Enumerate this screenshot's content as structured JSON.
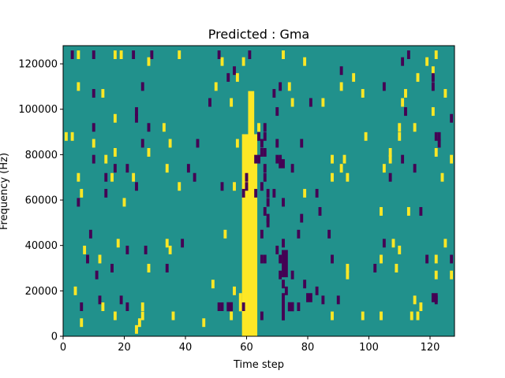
{
  "chart_data": {
    "type": "heatmap",
    "title": "Predicted : Gma",
    "xlabel": "Time step",
    "ylabel": "Frequency (Hz)",
    "xlim": [
      0,
      128
    ],
    "ylim": [
      0,
      128000
    ],
    "x_ticks": [
      0,
      20,
      40,
      60,
      80,
      100,
      120
    ],
    "y_ticks": [
      0,
      20000,
      40000,
      60000,
      80000,
      100000,
      120000
    ],
    "grid": false,
    "colors": {
      "background": "#21918c",
      "high": "#fde725",
      "low": "#440154"
    },
    "band": {
      "x_range": [
        58.5,
        63.5
      ],
      "y_range": [
        0,
        89000
      ],
      "core_x_range": [
        60.5,
        62.5
      ],
      "core_y_range": [
        0,
        108000
      ],
      "value": "high"
    },
    "cells": [
      {
        "x": 3,
        "y": 124000,
        "v": "low"
      },
      {
        "x": 5,
        "y": 124000,
        "v": "high"
      },
      {
        "x": 10,
        "y": 124000,
        "v": "low"
      },
      {
        "x": 17,
        "y": 124000,
        "v": "high"
      },
      {
        "x": 19,
        "y": 124000,
        "v": "high"
      },
      {
        "x": 23,
        "y": 124000,
        "v": "low"
      },
      {
        "x": 29,
        "y": 124000,
        "v": "low"
      },
      {
        "x": 38,
        "y": 124000,
        "v": "high"
      },
      {
        "x": 51,
        "y": 124000,
        "v": "low"
      },
      {
        "x": 61,
        "y": 124000,
        "v": "low"
      },
      {
        "x": 72,
        "y": 124000,
        "v": "high"
      },
      {
        "x": 113,
        "y": 124000,
        "v": "low"
      },
      {
        "x": 122,
        "y": 124000,
        "v": "high"
      },
      {
        "x": 28,
        "y": 121000,
        "v": "high"
      },
      {
        "x": 52,
        "y": 121000,
        "v": "high"
      },
      {
        "x": 59,
        "y": 121000,
        "v": "high"
      },
      {
        "x": 79,
        "y": 121000,
        "v": "high"
      },
      {
        "x": 111,
        "y": 121000,
        "v": "low"
      },
      {
        "x": 119,
        "y": 121000,
        "v": "high"
      },
      {
        "x": 56,
        "y": 117000,
        "v": "low"
      },
      {
        "x": 91,
        "y": 117000,
        "v": "low"
      },
      {
        "x": 121,
        "y": 117000,
        "v": "high"
      },
      {
        "x": 54,
        "y": 114000,
        "v": "low"
      },
      {
        "x": 57,
        "y": 114000,
        "v": "high"
      },
      {
        "x": 95,
        "y": 114000,
        "v": "high"
      },
      {
        "x": 116,
        "y": 114000,
        "v": "high"
      },
      {
        "x": 121,
        "y": 114000,
        "v": "low"
      },
      {
        "x": 5,
        "y": 110000,
        "v": "high"
      },
      {
        "x": 26,
        "y": 110000,
        "v": "low"
      },
      {
        "x": 50,
        "y": 110000,
        "v": "high"
      },
      {
        "x": 71,
        "y": 110000,
        "v": "low"
      },
      {
        "x": 74,
        "y": 110000,
        "v": "high"
      },
      {
        "x": 91,
        "y": 110000,
        "v": "high"
      },
      {
        "x": 105,
        "y": 110000,
        "v": "low"
      },
      {
        "x": 121,
        "y": 110000,
        "v": "low"
      },
      {
        "x": 10,
        "y": 107000,
        "v": "low"
      },
      {
        "x": 13,
        "y": 107000,
        "v": "high"
      },
      {
        "x": 69,
        "y": 107000,
        "v": "low"
      },
      {
        "x": 98,
        "y": 107000,
        "v": "high"
      },
      {
        "x": 112,
        "y": 107000,
        "v": "high"
      },
      {
        "x": 125,
        "y": 107000,
        "v": "high"
      },
      {
        "x": 48,
        "y": 103000,
        "v": "low"
      },
      {
        "x": 55,
        "y": 103000,
        "v": "high"
      },
      {
        "x": 75,
        "y": 103000,
        "v": "high"
      },
      {
        "x": 81,
        "y": 103000,
        "v": "low"
      },
      {
        "x": 85,
        "y": 103000,
        "v": "high"
      },
      {
        "x": 111,
        "y": 103000,
        "v": "high"
      },
      {
        "x": 24,
        "y": 99000,
        "v": "low"
      },
      {
        "x": 70,
        "y": 99000,
        "v": "low"
      },
      {
        "x": 112,
        "y": 99000,
        "v": "low"
      },
      {
        "x": 121,
        "y": 99000,
        "v": "high"
      },
      {
        "x": 17,
        "y": 96000,
        "v": "high"
      },
      {
        "x": 24,
        "y": 96000,
        "v": "low"
      },
      {
        "x": 127,
        "y": 96000,
        "v": "low"
      },
      {
        "x": 10,
        "y": 92000,
        "v": "low"
      },
      {
        "x": 28,
        "y": 92000,
        "v": "low"
      },
      {
        "x": 33,
        "y": 92000,
        "v": "high"
      },
      {
        "x": 64,
        "y": 92000,
        "v": "high"
      },
      {
        "x": 66,
        "y": 92000,
        "v": "low"
      },
      {
        "x": 110,
        "y": 92000,
        "v": "high"
      },
      {
        "x": 115,
        "y": 92000,
        "v": "high"
      },
      {
        "x": 1,
        "y": 88000,
        "v": "high"
      },
      {
        "x": 3,
        "y": 88000,
        "v": "high"
      },
      {
        "x": 64,
        "y": 88000,
        "v": "low"
      },
      {
        "x": 66,
        "y": 88000,
        "v": "low"
      },
      {
        "x": 99,
        "y": 88000,
        "v": "high"
      },
      {
        "x": 110,
        "y": 88000,
        "v": "high"
      },
      {
        "x": 122,
        "y": 88000,
        "v": "low"
      },
      {
        "x": 123,
        "y": 88000,
        "v": "low"
      },
      {
        "x": 10,
        "y": 85000,
        "v": "high"
      },
      {
        "x": 26,
        "y": 85000,
        "v": "low"
      },
      {
        "x": 35,
        "y": 85000,
        "v": "high"
      },
      {
        "x": 44,
        "y": 85000,
        "v": "low"
      },
      {
        "x": 57,
        "y": 85000,
        "v": "high"
      },
      {
        "x": 65,
        "y": 85000,
        "v": "low"
      },
      {
        "x": 70,
        "y": 85000,
        "v": "low"
      },
      {
        "x": 78,
        "y": 85000,
        "v": "low"
      },
      {
        "x": 123,
        "y": 85000,
        "v": "low"
      },
      {
        "x": 17,
        "y": 81000,
        "v": "high"
      },
      {
        "x": 28,
        "y": 81000,
        "v": "high"
      },
      {
        "x": 65,
        "y": 81000,
        "v": "low"
      },
      {
        "x": 66,
        "y": 81000,
        "v": "low"
      },
      {
        "x": 107,
        "y": 81000,
        "v": "high"
      },
      {
        "x": 122,
        "y": 81000,
        "v": "high"
      },
      {
        "x": 10,
        "y": 78000,
        "v": "low"
      },
      {
        "x": 14,
        "y": 78000,
        "v": "high"
      },
      {
        "x": 63,
        "y": 78000,
        "v": "low"
      },
      {
        "x": 64,
        "y": 78000,
        "v": "low"
      },
      {
        "x": 70,
        "y": 78000,
        "v": "low"
      },
      {
        "x": 71,
        "y": 78000,
        "v": "low"
      },
      {
        "x": 88,
        "y": 78000,
        "v": "high"
      },
      {
        "x": 92,
        "y": 78000,
        "v": "high"
      },
      {
        "x": 107,
        "y": 78000,
        "v": "high"
      },
      {
        "x": 111,
        "y": 78000,
        "v": "low"
      },
      {
        "x": 127,
        "y": 78000,
        "v": "high"
      },
      {
        "x": 17,
        "y": 74000,
        "v": "low"
      },
      {
        "x": 21,
        "y": 74000,
        "v": "low"
      },
      {
        "x": 34,
        "y": 74000,
        "v": "high"
      },
      {
        "x": 41,
        "y": 74000,
        "v": "low"
      },
      {
        "x": 66,
        "y": 74000,
        "v": "low"
      },
      {
        "x": 75,
        "y": 74000,
        "v": "low"
      },
      {
        "x": 91,
        "y": 74000,
        "v": "high"
      },
      {
        "x": 105,
        "y": 74000,
        "v": "high"
      },
      {
        "x": 115,
        "y": 74000,
        "v": "low"
      },
      {
        "x": 5,
        "y": 70000,
        "v": "high"
      },
      {
        "x": 14,
        "y": 70000,
        "v": "low"
      },
      {
        "x": 16,
        "y": 70000,
        "v": "high"
      },
      {
        "x": 23,
        "y": 70000,
        "v": "high"
      },
      {
        "x": 43,
        "y": 70000,
        "v": "low"
      },
      {
        "x": 60,
        "y": 70000,
        "v": "low"
      },
      {
        "x": 66,
        "y": 70000,
        "v": "low"
      },
      {
        "x": 88,
        "y": 70000,
        "v": "high"
      },
      {
        "x": 93,
        "y": 70000,
        "v": "high"
      },
      {
        "x": 107,
        "y": 70000,
        "v": "low"
      },
      {
        "x": 124,
        "y": 70000,
        "v": "high"
      },
      {
        "x": 24,
        "y": 66000,
        "v": "low"
      },
      {
        "x": 38,
        "y": 66000,
        "v": "high"
      },
      {
        "x": 52,
        "y": 66000,
        "v": "low"
      },
      {
        "x": 56,
        "y": 66000,
        "v": "high"
      },
      {
        "x": 60,
        "y": 66000,
        "v": "low"
      },
      {
        "x": 65,
        "y": 66000,
        "v": "low"
      },
      {
        "x": 6,
        "y": 63000,
        "v": "high"
      },
      {
        "x": 14,
        "y": 63000,
        "v": "low"
      },
      {
        "x": 59,
        "y": 63000,
        "v": "low"
      },
      {
        "x": 63,
        "y": 63000,
        "v": "low"
      },
      {
        "x": 67,
        "y": 63000,
        "v": "low"
      },
      {
        "x": 69,
        "y": 63000,
        "v": "low"
      },
      {
        "x": 79,
        "y": 63000,
        "v": "high"
      },
      {
        "x": 83,
        "y": 63000,
        "v": "low"
      },
      {
        "x": 5,
        "y": 59000,
        "v": "low"
      },
      {
        "x": 20,
        "y": 59000,
        "v": "high"
      },
      {
        "x": 67,
        "y": 59000,
        "v": "low"
      },
      {
        "x": 72,
        "y": 59000,
        "v": "low"
      },
      {
        "x": 66,
        "y": 55000,
        "v": "low"
      },
      {
        "x": 84,
        "y": 55000,
        "v": "low"
      },
      {
        "x": 104,
        "y": 55000,
        "v": "high"
      },
      {
        "x": 113,
        "y": 55000,
        "v": "high"
      },
      {
        "x": 117,
        "y": 55000,
        "v": "low"
      },
      {
        "x": 67,
        "y": 52000,
        "v": "low"
      },
      {
        "x": 78,
        "y": 52000,
        "v": "low"
      },
      {
        "x": 9,
        "y": 45000,
        "v": "low"
      },
      {
        "x": 53,
        "y": 45000,
        "v": "high"
      },
      {
        "x": 65,
        "y": 45000,
        "v": "low"
      },
      {
        "x": 77,
        "y": 45000,
        "v": "low"
      },
      {
        "x": 87,
        "y": 45000,
        "v": "low"
      },
      {
        "x": 18,
        "y": 41000,
        "v": "high"
      },
      {
        "x": 34,
        "y": 41000,
        "v": "high"
      },
      {
        "x": 39,
        "y": 41000,
        "v": "low"
      },
      {
        "x": 72,
        "y": 41000,
        "v": "low"
      },
      {
        "x": 105,
        "y": 41000,
        "v": "low"
      },
      {
        "x": 108,
        "y": 41000,
        "v": "high"
      },
      {
        "x": 125,
        "y": 41000,
        "v": "high"
      },
      {
        "x": 7,
        "y": 38000,
        "v": "high"
      },
      {
        "x": 21,
        "y": 38000,
        "v": "low"
      },
      {
        "x": 27,
        "y": 38000,
        "v": "low"
      },
      {
        "x": 35,
        "y": 38000,
        "v": "high"
      },
      {
        "x": 70,
        "y": 38000,
        "v": "low"
      },
      {
        "x": 110,
        "y": 38000,
        "v": "high"
      },
      {
        "x": 8,
        "y": 34000,
        "v": "low"
      },
      {
        "x": 12,
        "y": 34000,
        "v": "high"
      },
      {
        "x": 65,
        "y": 34000,
        "v": "low"
      },
      {
        "x": 66,
        "y": 34000,
        "v": "low"
      },
      {
        "x": 71,
        "y": 34000,
        "v": "low"
      },
      {
        "x": 88,
        "y": 34000,
        "v": "low"
      },
      {
        "x": 104,
        "y": 34000,
        "v": "high"
      },
      {
        "x": 119,
        "y": 34000,
        "v": "low"
      },
      {
        "x": 122,
        "y": 34000,
        "v": "high"
      },
      {
        "x": 127,
        "y": 34000,
        "v": "low"
      },
      {
        "x": 16,
        "y": 30000,
        "v": "low"
      },
      {
        "x": 28,
        "y": 30000,
        "v": "high"
      },
      {
        "x": 34,
        "y": 30000,
        "v": "low"
      },
      {
        "x": 93,
        "y": 30000,
        "v": "high"
      },
      {
        "x": 102,
        "y": 30000,
        "v": "low"
      },
      {
        "x": 109,
        "y": 30000,
        "v": "high"
      },
      {
        "x": 11,
        "y": 27000,
        "v": "low"
      },
      {
        "x": 71,
        "y": 27000,
        "v": "low"
      },
      {
        "x": 75,
        "y": 27000,
        "v": "low"
      },
      {
        "x": 93,
        "y": 27000,
        "v": "high"
      },
      {
        "x": 122,
        "y": 27000,
        "v": "high"
      },
      {
        "x": 127,
        "y": 27000,
        "v": "high"
      },
      {
        "x": 49,
        "y": 23000,
        "v": "high"
      },
      {
        "x": 72,
        "y": 23000,
        "v": "low"
      },
      {
        "x": 79,
        "y": 23000,
        "v": "low"
      },
      {
        "x": 4,
        "y": 20000,
        "v": "high"
      },
      {
        "x": 56,
        "y": 20000,
        "v": "high"
      },
      {
        "x": 73,
        "y": 20000,
        "v": "low"
      },
      {
        "x": 83,
        "y": 20000,
        "v": "low"
      },
      {
        "x": 12,
        "y": 16000,
        "v": "low"
      },
      {
        "x": 19,
        "y": 16000,
        "v": "low"
      },
      {
        "x": 85,
        "y": 16000,
        "v": "low"
      },
      {
        "x": 90,
        "y": 16000,
        "v": "low"
      },
      {
        "x": 115,
        "y": 16000,
        "v": "high"
      },
      {
        "x": 122,
        "y": 16000,
        "v": "low"
      },
      {
        "x": 6,
        "y": 13000,
        "v": "low"
      },
      {
        "x": 13,
        "y": 13000,
        "v": "high"
      },
      {
        "x": 21,
        "y": 13000,
        "v": "low"
      },
      {
        "x": 26,
        "y": 13000,
        "v": "high"
      },
      {
        "x": 51,
        "y": 13000,
        "v": "low"
      },
      {
        "x": 52,
        "y": 13000,
        "v": "low"
      },
      {
        "x": 59,
        "y": 13000,
        "v": "low"
      },
      {
        "x": 77,
        "y": 13000,
        "v": "low"
      },
      {
        "x": 117,
        "y": 13000,
        "v": "high"
      },
      {
        "x": 17,
        "y": 9000,
        "v": "high"
      },
      {
        "x": 26,
        "y": 9000,
        "v": "high"
      },
      {
        "x": 36,
        "y": 9000,
        "v": "high"
      },
      {
        "x": 55,
        "y": 9000,
        "v": "high"
      },
      {
        "x": 65,
        "y": 9000,
        "v": "low"
      },
      {
        "x": 88,
        "y": 9000,
        "v": "high"
      },
      {
        "x": 98,
        "y": 9000,
        "v": "high"
      },
      {
        "x": 104,
        "y": 9000,
        "v": "high"
      },
      {
        "x": 114,
        "y": 9000,
        "v": "high"
      },
      {
        "x": 116,
        "y": 9000,
        "v": "high"
      },
      {
        "x": 6,
        "y": 6000,
        "v": "high"
      },
      {
        "x": 25,
        "y": 6000,
        "v": "high"
      },
      {
        "x": 46,
        "y": 6000,
        "v": "high"
      },
      {
        "x": 60,
        "y": 3000,
        "v": "high"
      },
      {
        "x": 24,
        "y": 3000,
        "v": "high"
      }
    ],
    "blocks": [
      {
        "x_range": [
          71.5,
          73.5
        ],
        "y_range": [
          26000,
          38000
        ],
        "v": "low"
      },
      {
        "x_range": [
          73.5,
          75.5
        ],
        "y_range": [
          11000,
          15000
        ],
        "v": "low"
      },
      {
        "x_range": [
          71.5,
          72.5
        ],
        "y_range": [
          7000,
          19000
        ],
        "v": "low"
      },
      {
        "x_range": [
          79.5,
          81.5
        ],
        "y_range": [
          15000,
          19000
        ],
        "v": "low"
      },
      {
        "x_range": [
          120.5,
          122.5
        ],
        "y_range": [
          15000,
          19000
        ],
        "v": "low"
      },
      {
        "x_range": [
          53.5,
          55.5
        ],
        "y_range": [
          11000,
          15000
        ],
        "v": "low"
      },
      {
        "x_range": [
          57.5,
          58.5
        ],
        "y_range": [
          11000,
          19000
        ],
        "v": "high"
      },
      {
        "x_range": [
          66.5,
          67.5
        ],
        "y_range": [
          48000,
          52000
        ],
        "v": "low"
      },
      {
        "x_range": [
          70.5,
          72.5
        ],
        "y_range": [
          74000,
          78000
        ],
        "v": "low"
      }
    ]
  }
}
